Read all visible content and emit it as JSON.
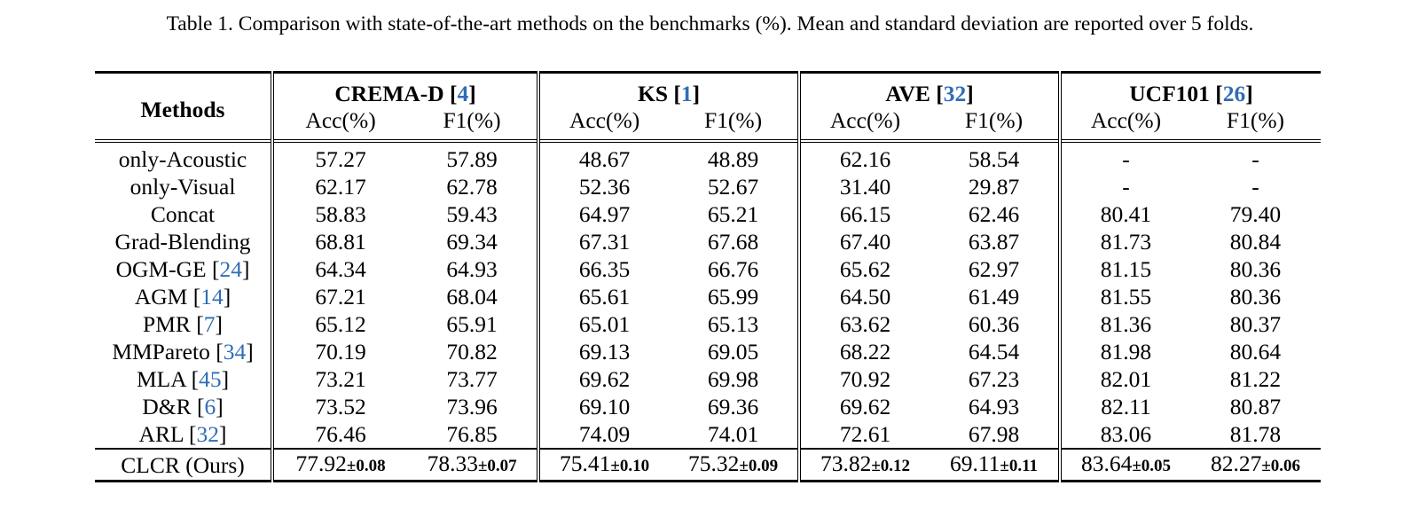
{
  "caption": "Table 1. Comparison with state-of-the-art methods on the benchmarks (%). Mean and standard deviation are reported over 5 folds.",
  "header": {
    "methods_label": "Methods",
    "groups": [
      {
        "name": "CREMA-D [",
        "cite": "4",
        "close": "]"
      },
      {
        "name": "KS [",
        "cite": "1",
        "close": "]"
      },
      {
        "name": "AVE [",
        "cite": "32",
        "close": "]"
      },
      {
        "name": "UCF101 [",
        "cite": "26",
        "close": "]"
      }
    ],
    "acc_label": "Acc(%)",
    "f1_label": "F1(%)"
  },
  "rows": [
    {
      "method": "only-Acoustic",
      "cite": "",
      "values": [
        "57.27",
        "57.89",
        "48.67",
        "48.89",
        "62.16",
        "58.54",
        "-",
        "-"
      ]
    },
    {
      "method": "only-Visual",
      "cite": "",
      "values": [
        "62.17",
        "62.78",
        "52.36",
        "52.67",
        "31.40",
        "29.87",
        "-",
        "-"
      ]
    },
    {
      "method": "Concat",
      "cite": "",
      "values": [
        "58.83",
        "59.43",
        "64.97",
        "65.21",
        "66.15",
        "62.46",
        "80.41",
        "79.40"
      ]
    },
    {
      "method": "Grad-Blending",
      "cite": "",
      "values": [
        "68.81",
        "69.34",
        "67.31",
        "67.68",
        "67.40",
        "63.87",
        "81.73",
        "80.84"
      ]
    },
    {
      "method": "OGM-GE [",
      "cite": "24",
      "values": [
        "64.34",
        "64.93",
        "66.35",
        "66.76",
        "65.62",
        "62.97",
        "81.15",
        "80.36"
      ]
    },
    {
      "method": "AGM [",
      "cite": "14",
      "values": [
        "67.21",
        "68.04",
        "65.61",
        "65.99",
        "64.50",
        "61.49",
        "81.55",
        "80.36"
      ]
    },
    {
      "method": "PMR [",
      "cite": "7",
      "values": [
        "65.12",
        "65.91",
        "65.01",
        "65.13",
        "63.62",
        "60.36",
        "81.36",
        "80.37"
      ]
    },
    {
      "method": "MMPareto [",
      "cite": "34",
      "values": [
        "70.19",
        "70.82",
        "69.13",
        "69.05",
        "68.22",
        "64.54",
        "81.98",
        "80.64"
      ]
    },
    {
      "method": "MLA [",
      "cite": "45",
      "values": [
        "73.21",
        "73.77",
        "69.62",
        "69.98",
        "70.92",
        "67.23",
        "82.01",
        "81.22"
      ]
    },
    {
      "method": "D&R [",
      "cite": "6",
      "values": [
        "73.52",
        "73.96",
        "69.10",
        "69.36",
        "69.62",
        "64.93",
        "82.11",
        "80.87"
      ]
    },
    {
      "method": "ARL [",
      "cite": "32",
      "values": [
        "76.46",
        "76.85",
        "74.09",
        "74.01",
        "72.61",
        "67.98",
        "83.06",
        "81.78"
      ]
    }
  ],
  "ours": {
    "method": "CLCR (Ours)",
    "values": [
      {
        "mean": "77.92",
        "std": "±0.08"
      },
      {
        "mean": "78.33",
        "std": "±0.07"
      },
      {
        "mean": "75.41",
        "std": "±0.10"
      },
      {
        "mean": "75.32",
        "std": "±0.09"
      },
      {
        "mean": "73.82",
        "std": "±0.12"
      },
      {
        "mean": "69.11",
        "std": "±0.11"
      },
      {
        "mean": "83.64",
        "std": "±0.05"
      },
      {
        "mean": "82.27",
        "std": "±0.06"
      }
    ]
  }
}
